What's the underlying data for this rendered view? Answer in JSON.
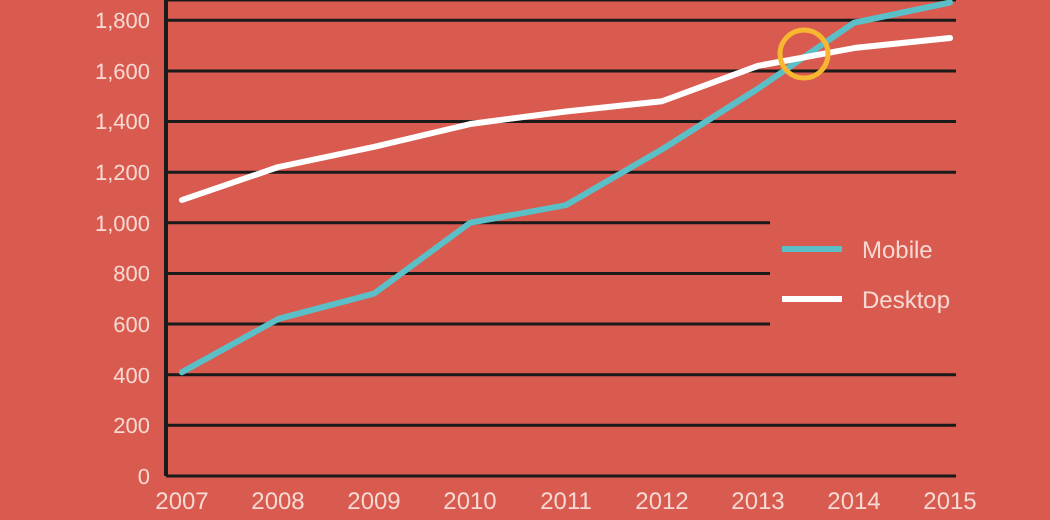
{
  "chart_data": {
    "type": "line",
    "categories": [
      "2007",
      "2008",
      "2009",
      "2010",
      "2011",
      "2012",
      "2013",
      "2014",
      "2015"
    ],
    "series": [
      {
        "name": "Mobile",
        "color": "#5bbfc8",
        "values": [
          410,
          620,
          720,
          1000,
          1070,
          1290,
          1530,
          1790,
          1870
        ]
      },
      {
        "name": "Desktop",
        "color": "#ffffff",
        "values": [
          1090,
          1220,
          1300,
          1390,
          1440,
          1480,
          1620,
          1690,
          1730
        ]
      }
    ],
    "ylim": [
      0,
      1880
    ],
    "yticks": [
      0,
      200,
      400,
      600,
      800,
      {
        "value": 1000,
        "label": "1,000"
      },
      {
        "value": 1200,
        "label": "1,200"
      },
      {
        "value": 1400,
        "label": "1,400"
      },
      {
        "value": 1600,
        "label": "1,600"
      },
      {
        "value": 1800,
        "label": "1,800"
      }
    ],
    "grid": "y",
    "legend": "right",
    "marker": "none",
    "line_style": "solid"
  }
}
